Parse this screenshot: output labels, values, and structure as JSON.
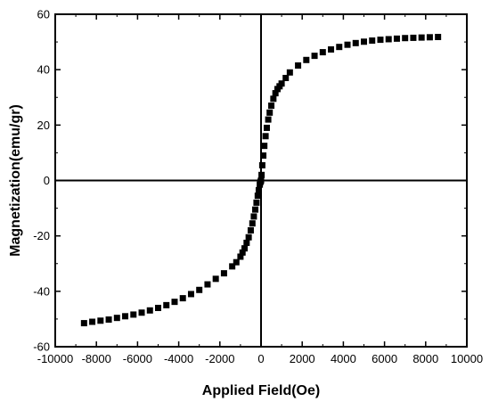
{
  "chart_data": {
    "type": "scatter",
    "title": "",
    "xlabel": "Applied Field(Oe)",
    "ylabel": "Magnetization(emu/gr)",
    "xlim": [
      -10000,
      10000
    ],
    "ylim": [
      -60,
      60
    ],
    "xticks": [
      -10000,
      -8000,
      -6000,
      -4000,
      -2000,
      0,
      2000,
      4000,
      6000,
      8000,
      10000
    ],
    "yticks": [
      -60,
      -40,
      -20,
      0,
      20,
      40,
      60
    ],
    "zero_lines": true,
    "grid": false,
    "marker": "square",
    "marker_color": "#000000",
    "series": [
      {
        "x": [
          -8600,
          -8200,
          -7800,
          -7400,
          -7000,
          -6600,
          -6200,
          -5800,
          -5400,
          -5000,
          -4600,
          -4200,
          -3800,
          -3400,
          -3000,
          -2600,
          -2200,
          -1800,
          -1400,
          -1200,
          -1000,
          -900,
          -800,
          -700,
          -600,
          -500,
          -420,
          -350,
          -280,
          -220,
          -160,
          -110,
          -60,
          -25,
          0,
          25,
          60,
          110,
          160,
          220,
          280,
          350,
          420,
          500,
          600,
          700,
          800,
          900,
          1000,
          1200,
          1400,
          1800,
          2200,
          2600,
          3000,
          3400,
          3800,
          4200,
          4600,
          5000,
          5400,
          5800,
          6200,
          6600,
          7000,
          7400,
          7800,
          8200,
          8600
        ],
        "y": [
          -51.5,
          -51.0,
          -50.6,
          -50.2,
          -49.6,
          -49.0,
          -48.4,
          -47.7,
          -46.9,
          -46.0,
          -45.0,
          -43.8,
          -42.5,
          -41.0,
          -39.5,
          -37.5,
          -35.5,
          -33.5,
          -31.0,
          -29.5,
          -27.5,
          -26.0,
          -24.5,
          -22.5,
          -20.5,
          -18.0,
          -15.5,
          -13.0,
          -10.5,
          -8.0,
          -5.5,
          -3.5,
          -1.5,
          -0.5,
          0,
          2.0,
          5.5,
          9.0,
          12.5,
          16.0,
          19.0,
          22.0,
          24.5,
          27.0,
          29.5,
          31.5,
          33.0,
          34.0,
          35.0,
          37.0,
          39.0,
          41.5,
          43.5,
          45.0,
          46.3,
          47.3,
          48.2,
          49.0,
          49.6,
          50.1,
          50.5,
          50.8,
          51.0,
          51.2,
          51.4,
          51.5,
          51.6,
          51.7,
          51.8
        ]
      }
    ]
  }
}
